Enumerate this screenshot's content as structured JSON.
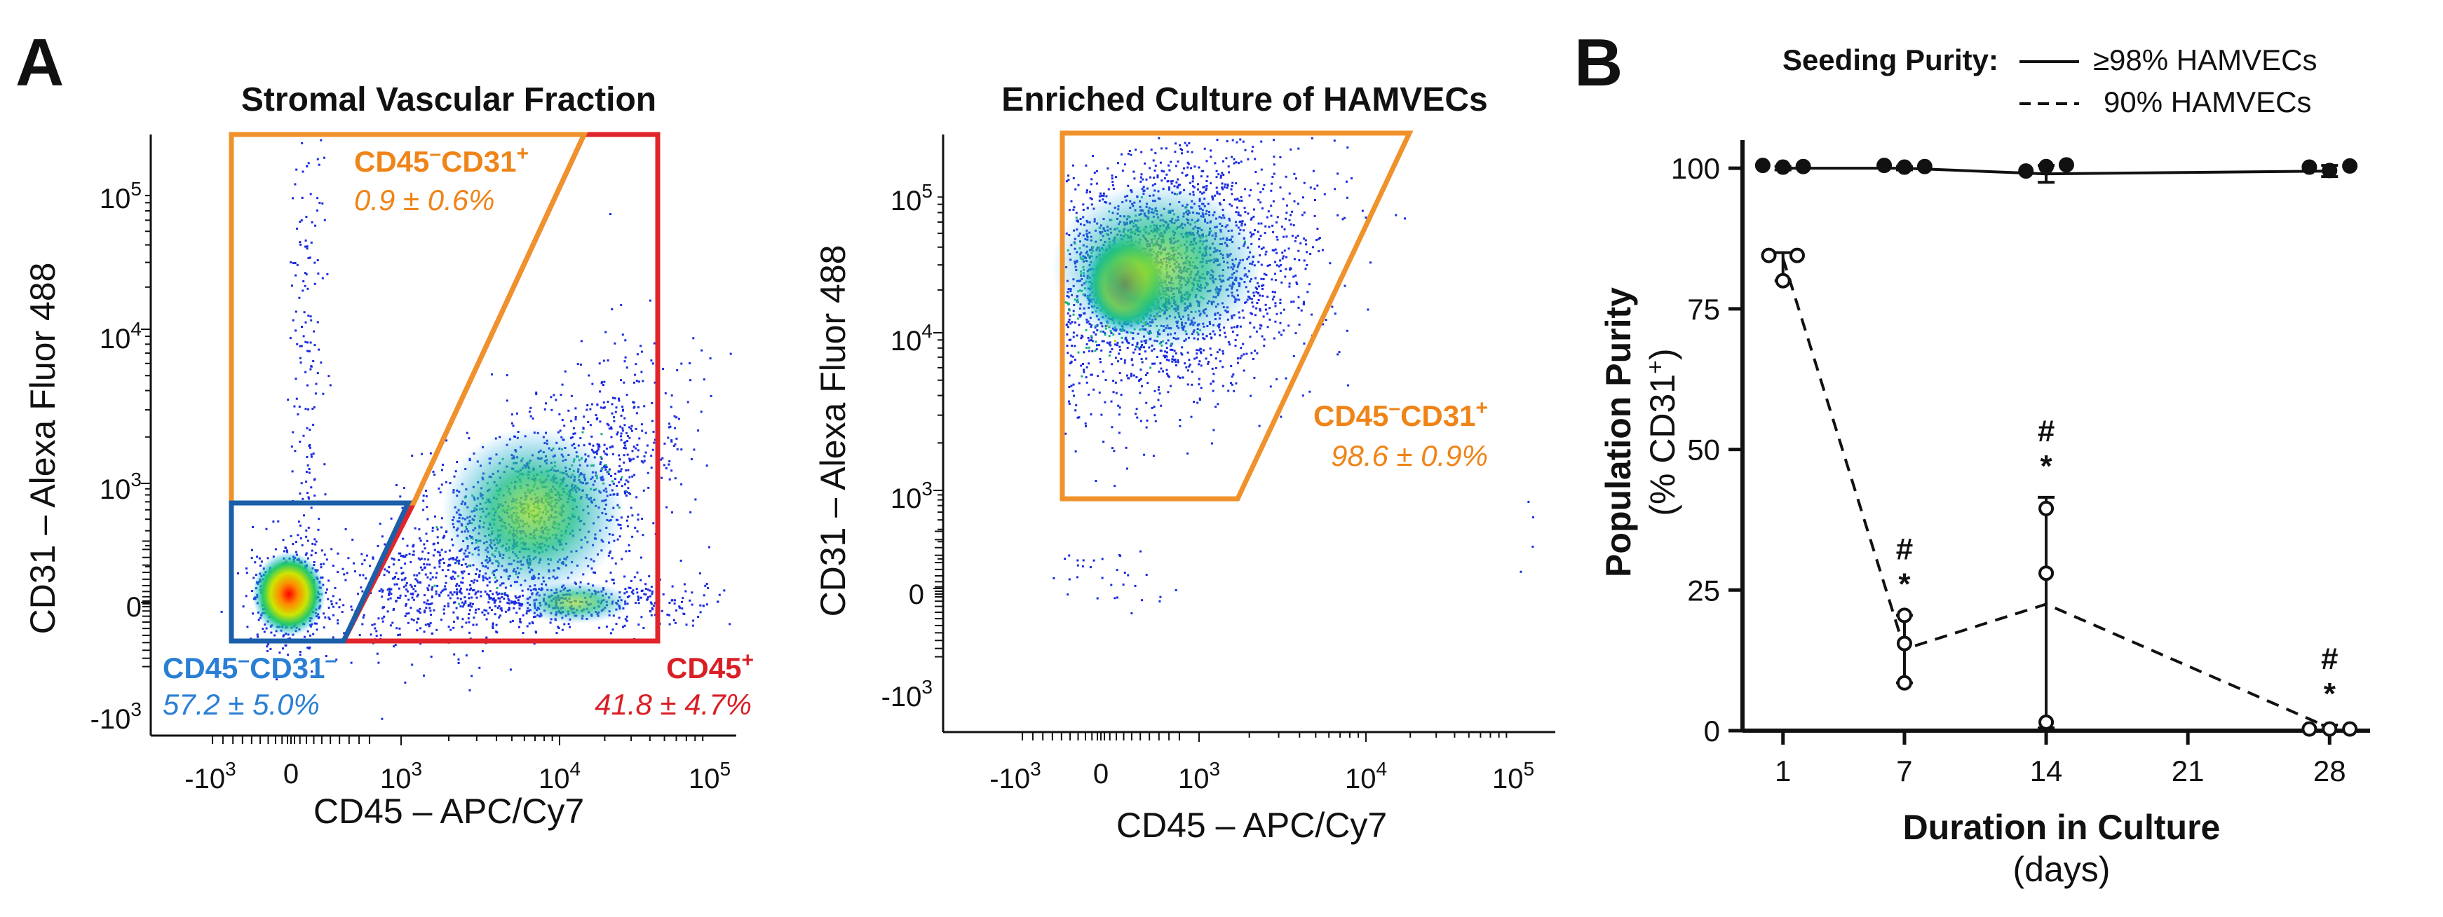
{
  "panel_labels": {
    "a": "A",
    "b": "B"
  },
  "colors": {
    "orange_gate": "#f0922b",
    "red_gate": "#e0242b",
    "blue_gate": "#1a5fa8",
    "orange_text": "#ef8418",
    "red_text": "#d91f26",
    "blue_text": "#2a7fd4"
  },
  "chart_data": [
    {
      "type": "scatter",
      "title": "Stromal Vascular Fraction",
      "xlabel": "CD45 – APC/Cy7",
      "ylabel": "CD31 – Alexa Fluor 488",
      "x_scale": "biexponential",
      "y_scale": "biexponential",
      "x_ticks": [
        "-10",
        "0",
        "10",
        "10",
        "10"
      ],
      "x_tick_exps": [
        "3",
        "",
        "3",
        "4",
        "5"
      ],
      "y_ticks": [
        "10",
        "10",
        "10",
        "0",
        "-10"
      ],
      "y_tick_exps": [
        "5",
        "4",
        "3",
        "",
        "3"
      ],
      "gates": [
        {
          "name": "CD45",
          "name_sup": "+",
          "value": "41.8 ± 4.7%",
          "color": "red"
        },
        {
          "name": "CD45",
          "name_sup": "–",
          "name2": "CD31",
          "name2_sup": "+",
          "value": "0.9 ± 0.6%",
          "color": "orange"
        },
        {
          "name": "CD45",
          "name_sup": "–",
          "name2": "CD31",
          "name2_sup": "–",
          "value": "57.2 ± 5.0%",
          "color": "blue"
        }
      ]
    },
    {
      "type": "scatter",
      "title": "Enriched Culture of HAMVECs",
      "xlabel": "CD45 – APC/Cy7",
      "ylabel": "CD31 – Alexa Fluor 488",
      "x_scale": "biexponential",
      "y_scale": "biexponential",
      "x_ticks": [
        "-10",
        "0",
        "10",
        "10",
        "10"
      ],
      "x_tick_exps": [
        "3",
        "",
        "3",
        "4",
        "5"
      ],
      "y_ticks": [
        "10",
        "10",
        "10",
        "0",
        "-10"
      ],
      "y_tick_exps": [
        "5",
        "4",
        "3",
        "",
        "3"
      ],
      "gates": [
        {
          "name": "CD45",
          "name_sup": "–",
          "name2": "CD31",
          "name2_sup": "+",
          "value": "98.6 ± 0.9%",
          "color": "orange"
        }
      ]
    },
    {
      "type": "line",
      "xlabel": "Duration in Culture",
      "xlabel_units": "(days)",
      "ylabel": "Population Purity",
      "ylabel_units_prefix": "(% CD31",
      "ylabel_units_sup": "+",
      "ylabel_units_suffix": ")",
      "x_ticks": [
        1,
        7,
        14,
        21,
        28
      ],
      "y_ticks": [
        0,
        25,
        50,
        75,
        100
      ],
      "xlim": [
        -1,
        30
      ],
      "ylim": [
        0,
        105
      ],
      "legend_title": "Seeding Purity:",
      "legend_position": "top",
      "series": [
        {
          "name": "≥98% HAMVECs",
          "style": "solid",
          "marker": "filled",
          "x": [
            1,
            7,
            14,
            28
          ],
          "y": [
            100,
            100,
            99,
            99.5
          ],
          "err": [
            0.3,
            0.3,
            1.5,
            1.0
          ],
          "points": [
            [
              0,
              100.5
            ],
            [
              1,
              100.2
            ],
            [
              2,
              100.3
            ],
            [
              6,
              100.5
            ],
            [
              7,
              100.2
            ],
            [
              8,
              100.3
            ],
            [
              13,
              99.5
            ],
            [
              14,
              100.3
            ],
            [
              15,
              100.6
            ],
            [
              27,
              100.2
            ],
            [
              28,
              99.6
            ],
            [
              29,
              100.4
            ]
          ]
        },
        {
          "name": "90%  HAMVECs",
          "style": "dashed",
          "marker": "open",
          "x": [
            1,
            7,
            14,
            28
          ],
          "y": [
            84,
            14.5,
            22.5,
            0.5
          ],
          "err_lo": [
            80,
            8.5,
            0.5,
            0
          ],
          "err_hi": [
            85,
            20.5,
            41.5,
            1
          ],
          "points": [
            [
              0.3,
              84.5
            ],
            [
              1,
              80
            ],
            [
              1.7,
              84.5
            ],
            [
              7,
              20.5
            ],
            [
              7,
              15.5
            ],
            [
              7,
              8.5
            ],
            [
              14,
              39.5
            ],
            [
              14,
              28
            ],
            [
              14,
              1.5
            ],
            [
              27,
              0.3
            ],
            [
              28,
              0.3
            ],
            [
              29,
              0.3
            ]
          ]
        }
      ],
      "annotations": [
        {
          "x": 7,
          "lines": [
            "#",
            "*"
          ]
        },
        {
          "x": 14,
          "lines": [
            "#",
            "*"
          ]
        },
        {
          "x": 28,
          "lines": [
            "#",
            "*"
          ]
        }
      ]
    }
  ]
}
